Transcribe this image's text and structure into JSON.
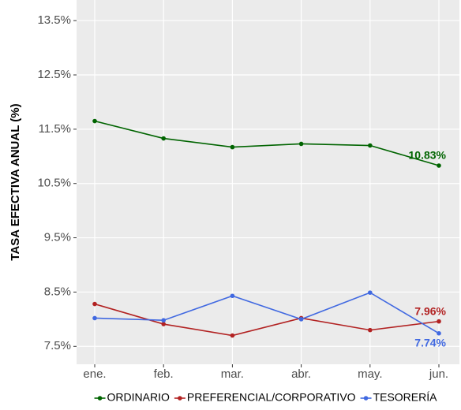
{
  "chart_data": {
    "type": "line",
    "y_label": "TASA EFECTIVA ANUAL (%)",
    "categories": [
      "ene.",
      "feb.",
      "mar.",
      "abr.",
      "may.",
      "jun."
    ],
    "series": [
      {
        "name": "ORDINARIO",
        "color": "#006400",
        "values": [
          11.65,
          11.33,
          11.17,
          11.23,
          11.2,
          10.83
        ],
        "value_labels": [
          null,
          null,
          null,
          null,
          null,
          "10.83%"
        ]
      },
      {
        "name": "PREFERENCIAL/CORPORATIVO",
        "color": "#b22222",
        "values": [
          8.28,
          7.91,
          7.7,
          8.02,
          7.8,
          7.96
        ],
        "value_labels": [
          null,
          null,
          null,
          null,
          null,
          "7.96%"
        ]
      },
      {
        "name": "TESORERÍA",
        "color": "#4169e1",
        "values": [
          8.02,
          7.98,
          8.43,
          8.0,
          8.49,
          7.74
        ],
        "value_labels": [
          null,
          null,
          null,
          null,
          null,
          "7.74%"
        ]
      }
    ],
    "ylim": [
      7.17,
      13.88
    ],
    "yticks": [
      {
        "value": 7.5,
        "label": "7.5%"
      },
      {
        "value": 8.5,
        "label": "8.5%"
      },
      {
        "value": 9.5,
        "label": "9.5%"
      },
      {
        "value": 10.5,
        "label": "10.5%"
      },
      {
        "value": 11.5,
        "label": "11.5%"
      },
      {
        "value": 12.5,
        "label": "12.5%"
      },
      {
        "value": 13.5,
        "label": "13.5%"
      }
    ],
    "grid": true,
    "legend": "bottom"
  }
}
